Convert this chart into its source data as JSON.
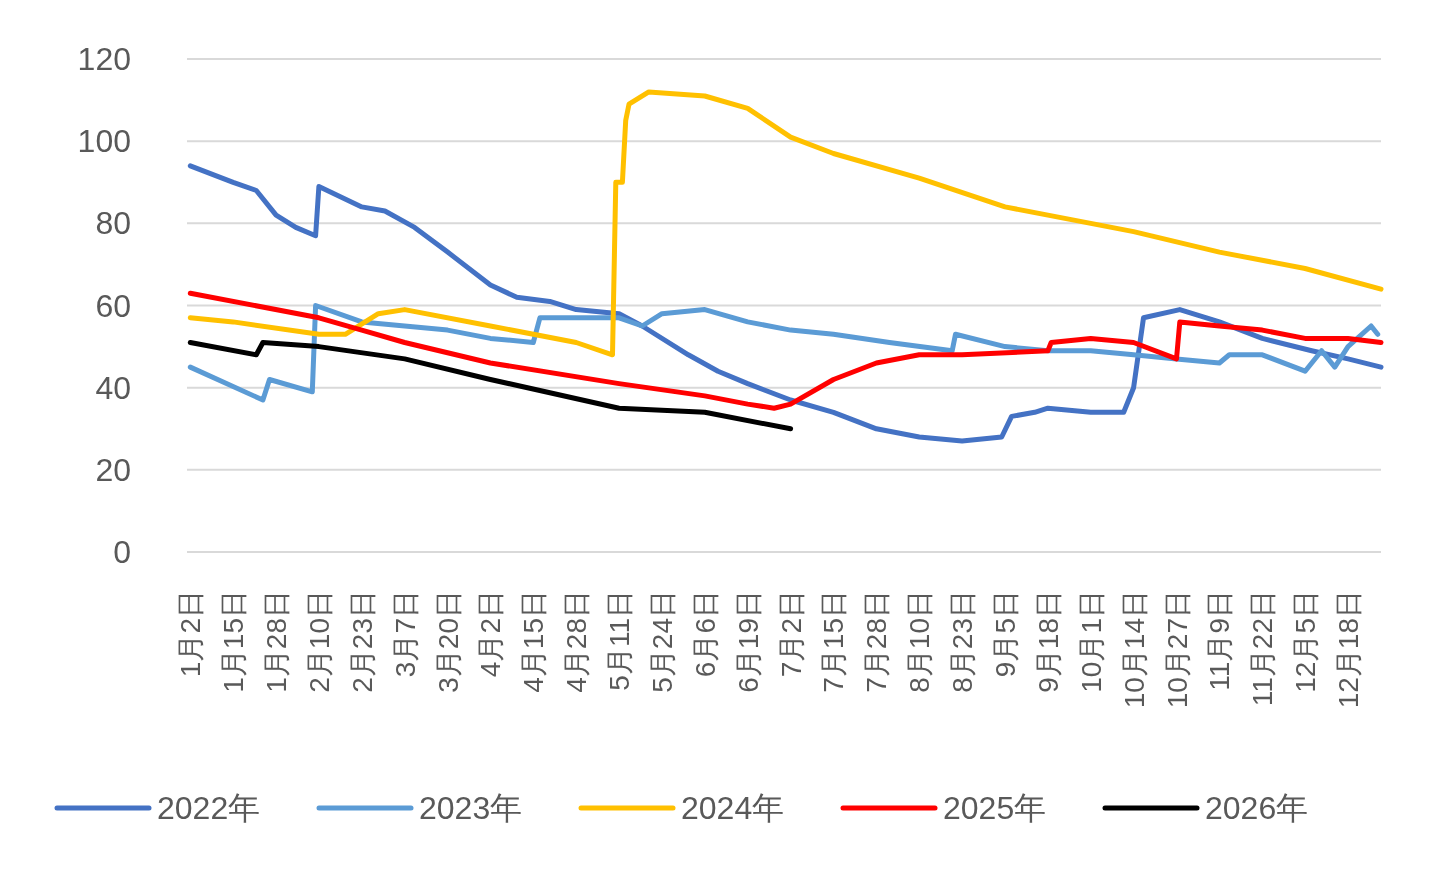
{
  "chart_data": {
    "type": "line",
    "xlim": [
      "--01-01",
      "--12-28"
    ],
    "xticks": [
      {
        "value": "--01-02",
        "label": "1月2日"
      },
      {
        "value": "--01-15",
        "label": "1月15日"
      },
      {
        "value": "--01-28",
        "label": "1月28日"
      },
      {
        "value": "--02-10",
        "label": "2月10日"
      },
      {
        "value": "--02-23",
        "label": "2月23日"
      },
      {
        "value": "--03-07",
        "label": "3月7日"
      },
      {
        "value": "--03-20",
        "label": "3月20日"
      },
      {
        "value": "--04-02",
        "label": "4月2日"
      },
      {
        "value": "--04-15",
        "label": "4月15日"
      },
      {
        "value": "--04-28",
        "label": "4月28日"
      },
      {
        "value": "--05-11",
        "label": "5月11日"
      },
      {
        "value": "--05-24",
        "label": "5月24日"
      },
      {
        "value": "--06-06",
        "label": "6月6日"
      },
      {
        "value": "--06-19",
        "label": "6月19日"
      },
      {
        "value": "--07-02",
        "label": "7月2日"
      },
      {
        "value": "--07-15",
        "label": "7月15日"
      },
      {
        "value": "--07-28",
        "label": "7月28日"
      },
      {
        "value": "--08-10",
        "label": "8月10日"
      },
      {
        "value": "--08-23",
        "label": "8月23日"
      },
      {
        "value": "--09-05",
        "label": "9月5日"
      },
      {
        "value": "--09-18",
        "label": "9月18日"
      },
      {
        "value": "--10-01",
        "label": "10月1日"
      },
      {
        "value": "--10-14",
        "label": "10月14日"
      },
      {
        "value": "--10-27",
        "label": "10月27日"
      },
      {
        "value": "--11-09",
        "label": "11月9日"
      },
      {
        "value": "--11-22",
        "label": "11月22日"
      },
      {
        "value": "--12-05",
        "label": "12月5日"
      },
      {
        "value": "--12-18",
        "label": "12月18日"
      }
    ],
    "ylim": [
      0,
      120
    ],
    "yticks": [
      0,
      20,
      40,
      60,
      80,
      100,
      120
    ],
    "grid": "y",
    "legend": "bottom",
    "line_style": "solid",
    "marker": "none",
    "series": [
      {
        "name": "2022年",
        "color": "#4472c4",
        "x": [
          "--01-02",
          "--01-15",
          "--01-22",
          "--01-28",
          "--02-03",
          "--02-09",
          "--02-10",
          "--02-23",
          "--03-01",
          "--03-10",
          "--03-20",
          "--04-02",
          "--04-10",
          "--04-20",
          "--04-28",
          "--05-11",
          "--05-18",
          "--06-01",
          "--06-10",
          "--06-19",
          "--07-02",
          "--07-15",
          "--07-28",
          "--08-10",
          "--08-23",
          "--09-04",
          "--09-07",
          "--09-14",
          "--09-18",
          "--10-01",
          "--10-11",
          "--10-14",
          "--10-17",
          "--10-28",
          "--11-09",
          "--11-22",
          "--12-07",
          "--12-18",
          "--12-28"
        ],
        "values": [
          94,
          90,
          88,
          82,
          79,
          77,
          89,
          84,
          83,
          79,
          73,
          65,
          62,
          61,
          59,
          58,
          55,
          48,
          44,
          41,
          37,
          34,
          30,
          28,
          27,
          28,
          33,
          34,
          35,
          34,
          34,
          40,
          57,
          59,
          56,
          52,
          49,
          47,
          45
        ]
      },
      {
        "name": "2023年",
        "color": "#5b9bd5",
        "x": [
          "--01-02",
          "--01-24",
          "--01-26",
          "--02-08",
          "--02-09",
          "--02-23",
          "--03-20",
          "--04-02",
          "--04-15",
          "--04-17",
          "--05-11",
          "--05-18",
          "--05-24",
          "--06-06",
          "--06-19",
          "--07-02",
          "--07-15",
          "--08-01",
          "--08-20",
          "--08-21",
          "--09-05",
          "--09-18",
          "--10-01",
          "--10-14",
          "--10-27",
          "--11-09",
          "--11-12",
          "--11-22",
          "--12-05",
          "--12-10",
          "--12-14",
          "--12-18",
          "--12-25",
          "--12-27"
        ],
        "values": [
          45,
          37,
          42,
          39,
          60,
          56,
          54,
          52,
          51,
          57,
          57,
          55,
          58,
          59,
          56,
          54,
          53,
          51,
          49,
          53,
          50,
          49,
          49,
          48,
          47,
          46,
          48,
          48,
          44,
          49,
          45,
          50,
          55,
          53
        ]
      },
      {
        "name": "2024年",
        "color": "#ffc000",
        "x": [
          "--01-02",
          "--01-15",
          "--02-10",
          "--02-18",
          "--02-28",
          "--03-07",
          "--04-02",
          "--04-28",
          "--05-09",
          "--05-10",
          "--05-12",
          "--05-13",
          "--05-14",
          "--05-20",
          "--06-06",
          "--06-19",
          "--07-02",
          "--07-15",
          "--08-10",
          "--09-05",
          "--09-18",
          "--10-14",
          "--11-09",
          "--12-05",
          "--12-28"
        ],
        "values": [
          57,
          56,
          53,
          53,
          58,
          59,
          55,
          51,
          48,
          90,
          90,
          105,
          109,
          112,
          111,
          108,
          101,
          97,
          91,
          84,
          82,
          78,
          73,
          69,
          64
        ]
      },
      {
        "name": "2025年",
        "color": "#ff0000",
        "x": [
          "--01-02",
          "--02-10",
          "--02-23",
          "--03-07",
          "--04-02",
          "--05-11",
          "--06-06",
          "--06-19",
          "--06-27",
          "--07-02",
          "--07-15",
          "--07-28",
          "--08-10",
          "--08-23",
          "--09-18",
          "--09-19",
          "--10-01",
          "--10-14",
          "--10-27",
          "--10-28",
          "--11-09",
          "--11-22",
          "--12-05",
          "--12-18",
          "--12-28"
        ],
        "values": [
          63,
          57,
          54,
          51,
          46,
          41,
          38,
          36,
          35,
          36,
          42,
          46,
          48,
          48,
          49,
          51,
          52,
          51,
          47,
          56,
          55,
          54,
          52,
          52,
          51
        ]
      },
      {
        "name": "2026年",
        "color": "#000000",
        "x": [
          "--01-02",
          "--01-22",
          "--01-24",
          "--02-10",
          "--03-07",
          "--04-02",
          "--05-11",
          "--06-06",
          "--07-02"
        ],
        "values": [
          51,
          48,
          51,
          50,
          47,
          42,
          35,
          34,
          30
        ]
      }
    ]
  }
}
